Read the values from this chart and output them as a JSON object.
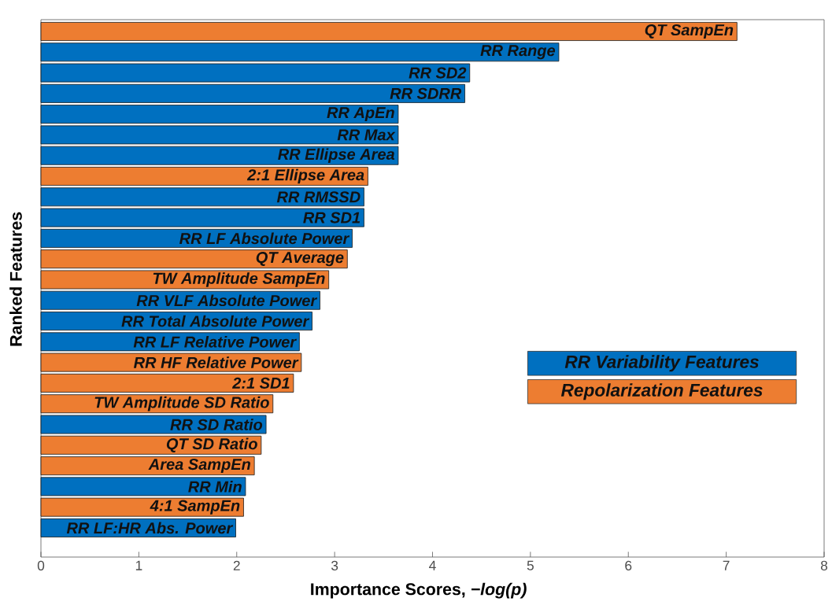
{
  "chart_data": {
    "type": "bar",
    "orientation": "horizontal",
    "xlabel": "Importance Scores, *−log(p)*",
    "ylabel": "Ranked Features",
    "categories": [
      "QT SampEn",
      "RR Range",
      "RR SD2",
      "RR SDRR",
      "RR ApEn",
      "RR Max",
      "RR Ellipse Area",
      "2:1 Ellipse Area",
      "RR RMSSD",
      "RR SD1",
      "RR LF Absolute Power",
      "QT Average",
      "TW Amplitude SampEn",
      "RR VLF Absolute Power",
      "RR Total Absolute Power",
      "RR LF Relative Power",
      "RR HF Relative Power",
      "2:1 SD1",
      "TW Amplitude SD Ratio",
      "RR SD Ratio",
      "QT SD Ratio",
      "Area SampEn",
      "RR Min",
      "4:1 SampEn",
      "RR LF:HR Abs. Power"
    ],
    "series": [
      {
        "name": "RR Variability Features",
        "color": "#0070c0",
        "values": [
          null,
          5.29,
          4.38,
          4.33,
          3.65,
          3.65,
          3.65,
          null,
          3.3,
          3.3,
          3.18,
          null,
          null,
          2.85,
          2.77,
          2.64,
          null,
          null,
          null,
          2.3,
          null,
          null,
          2.09,
          null,
          1.99
        ]
      },
      {
        "name": "Repolarization Features",
        "color": "#ed7d31",
        "values": [
          7.11,
          null,
          null,
          null,
          null,
          null,
          null,
          3.34,
          null,
          null,
          null,
          3.13,
          2.94,
          null,
          null,
          null,
          2.66,
          2.58,
          2.37,
          null,
          2.25,
          2.18,
          null,
          2.07,
          null
        ]
      }
    ],
    "xlim": [
      0,
      8
    ],
    "xticks": [
      0,
      1,
      2,
      3,
      4,
      5,
      6,
      7,
      8
    ],
    "tick_labels": "x",
    "legend": "right"
  }
}
